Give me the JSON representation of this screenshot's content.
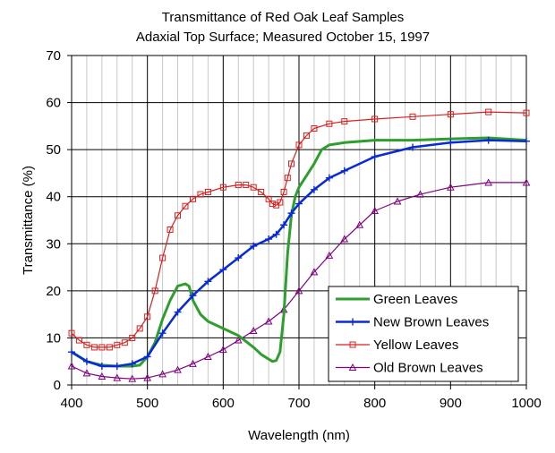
{
  "chart_data": {
    "type": "line",
    "title": "Transmittance of Red Oak Leaf Samples",
    "subtitle": "Adaxial Top Surface; Measured October 15, 1997",
    "xlabel": "Wavelength (nm)",
    "ylabel": "Transmittance (%)",
    "xlim": [
      400,
      1000
    ],
    "ylim": [
      0,
      70
    ],
    "x_ticks": [
      400,
      500,
      600,
      700,
      800,
      900,
      1000
    ],
    "y_ticks": [
      0,
      10,
      20,
      30,
      40,
      50,
      60,
      70
    ],
    "x_tick_labels": [
      "400",
      "500",
      "600",
      "700",
      "800",
      "900",
      "1000"
    ],
    "y_tick_labels": [
      "0",
      "10",
      "20",
      "30",
      "40",
      "50",
      "60",
      "70"
    ],
    "x_minor_step": 20,
    "grid": true,
    "legend_position": "bottom-right",
    "series": [
      {
        "name": "Green Leaves",
        "color": "#2e9e2e",
        "marker": "none",
        "x": [
          400,
          420,
          440,
          460,
          480,
          490,
          500,
          510,
          520,
          530,
          540,
          550,
          555,
          560,
          570,
          580,
          600,
          620,
          640,
          650,
          660,
          665,
          670,
          675,
          680,
          685,
          690,
          695,
          700,
          710,
          720,
          730,
          740,
          760,
          800,
          850,
          900,
          950,
          1000
        ],
        "y": [
          7,
          5,
          4.2,
          4,
          4,
          4.2,
          6,
          9,
          14,
          18,
          21,
          21.5,
          21,
          18,
          15,
          13.5,
          12,
          10.5,
          8,
          6.5,
          5.5,
          5,
          5.2,
          7,
          15,
          28,
          36,
          40,
          42,
          44.5,
          47,
          50,
          51,
          51.5,
          52,
          52,
          52.3,
          52.5,
          52
        ]
      },
      {
        "name": "New Brown Leaves",
        "color": "#0a2ad6",
        "marker": "plus",
        "x": [
          400,
          420,
          440,
          460,
          480,
          500,
          520,
          540,
          560,
          580,
          600,
          620,
          640,
          660,
          670,
          680,
          690,
          700,
          720,
          740,
          760,
          800,
          850,
          900,
          950,
          1000
        ],
        "y": [
          7,
          5,
          4,
          4,
          4.5,
          6,
          11,
          15.5,
          19,
          22,
          24.5,
          27,
          29.5,
          31,
          32,
          34,
          36.5,
          38.5,
          41.5,
          44,
          45.5,
          48.5,
          50.5,
          51.5,
          52,
          51.8
        ]
      },
      {
        "name": "Yellow Leaves",
        "color": "#d82020",
        "marker": "square",
        "x": [
          400,
          410,
          420,
          430,
          440,
          450,
          460,
          470,
          480,
          490,
          500,
          510,
          520,
          530,
          540,
          550,
          560,
          570,
          580,
          600,
          620,
          630,
          640,
          650,
          660,
          665,
          670,
          675,
          680,
          685,
          690,
          700,
          710,
          720,
          740,
          760,
          800,
          850,
          900,
          950,
          1000
        ],
        "y": [
          11,
          9.5,
          8.5,
          8,
          8,
          8,
          8.5,
          9,
          10,
          12,
          14.5,
          20,
          27,
          33,
          36,
          38,
          39.5,
          40.5,
          41,
          42,
          42.5,
          42.5,
          42,
          41,
          39.5,
          38.5,
          38.2,
          38.8,
          41,
          44,
          47,
          51,
          53,
          54.5,
          55.5,
          56,
          56.5,
          57,
          57.5,
          58,
          57.8
        ]
      },
      {
        "name": "Old Brown Leaves",
        "color": "#800080",
        "marker": "triangle",
        "x": [
          400,
          420,
          440,
          460,
          480,
          500,
          520,
          540,
          560,
          580,
          600,
          620,
          640,
          660,
          680,
          700,
          720,
          740,
          760,
          780,
          800,
          830,
          860,
          900,
          950,
          1000
        ],
        "y": [
          4,
          2.5,
          1.8,
          1.5,
          1.3,
          1.5,
          2.3,
          3.2,
          4.5,
          6,
          7.5,
          9.5,
          11.5,
          13.5,
          16,
          20,
          24,
          27.5,
          31,
          34,
          37,
          39,
          40.5,
          42,
          43,
          43
        ]
      }
    ]
  }
}
